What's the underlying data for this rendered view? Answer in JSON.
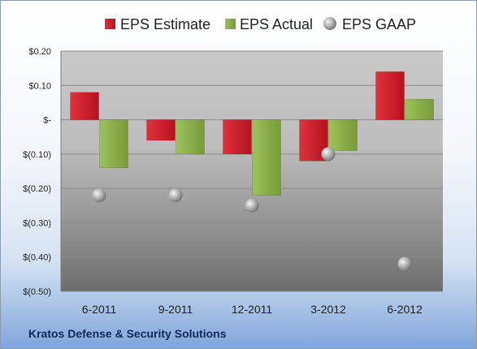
{
  "footer": {
    "company": "Kratos Defense & Security Solutions"
  },
  "colors": {
    "estimate": "#cc1f2a",
    "actual": "#8db04a",
    "gaap": "#a6a6a6"
  },
  "chart_data": {
    "type": "bar",
    "title": "",
    "xlabel": "",
    "ylabel": "",
    "categories": [
      "6-2011",
      "9-2011",
      "12-2011",
      "3-2012",
      "6-2012"
    ],
    "series": [
      {
        "name": "EPS Estimate",
        "kind": "bar",
        "values": [
          0.08,
          -0.06,
          -0.1,
          -0.12,
          0.14
        ]
      },
      {
        "name": "EPS Actual",
        "kind": "bar",
        "values": [
          -0.14,
          -0.1,
          -0.22,
          -0.09,
          0.06
        ]
      },
      {
        "name": "EPS GAAP",
        "kind": "marker",
        "values": [
          -0.22,
          -0.22,
          -0.25,
          -0.1,
          -0.42
        ]
      }
    ],
    "ylim": [
      -0.5,
      0.2
    ],
    "yticks": [
      {
        "value": 0.2,
        "label": "$0.20"
      },
      {
        "value": 0.1,
        "label": "$0.10"
      },
      {
        "value": 0.0,
        "label": "$-"
      },
      {
        "value": -0.1,
        "label": "$(0.10)"
      },
      {
        "value": -0.2,
        "label": "$(0.20)"
      },
      {
        "value": -0.3,
        "label": "$(0.30)"
      },
      {
        "value": -0.4,
        "label": "$(0.40)"
      },
      {
        "value": -0.5,
        "label": "$(0.50)"
      }
    ],
    "grid": true,
    "legend": "top"
  }
}
